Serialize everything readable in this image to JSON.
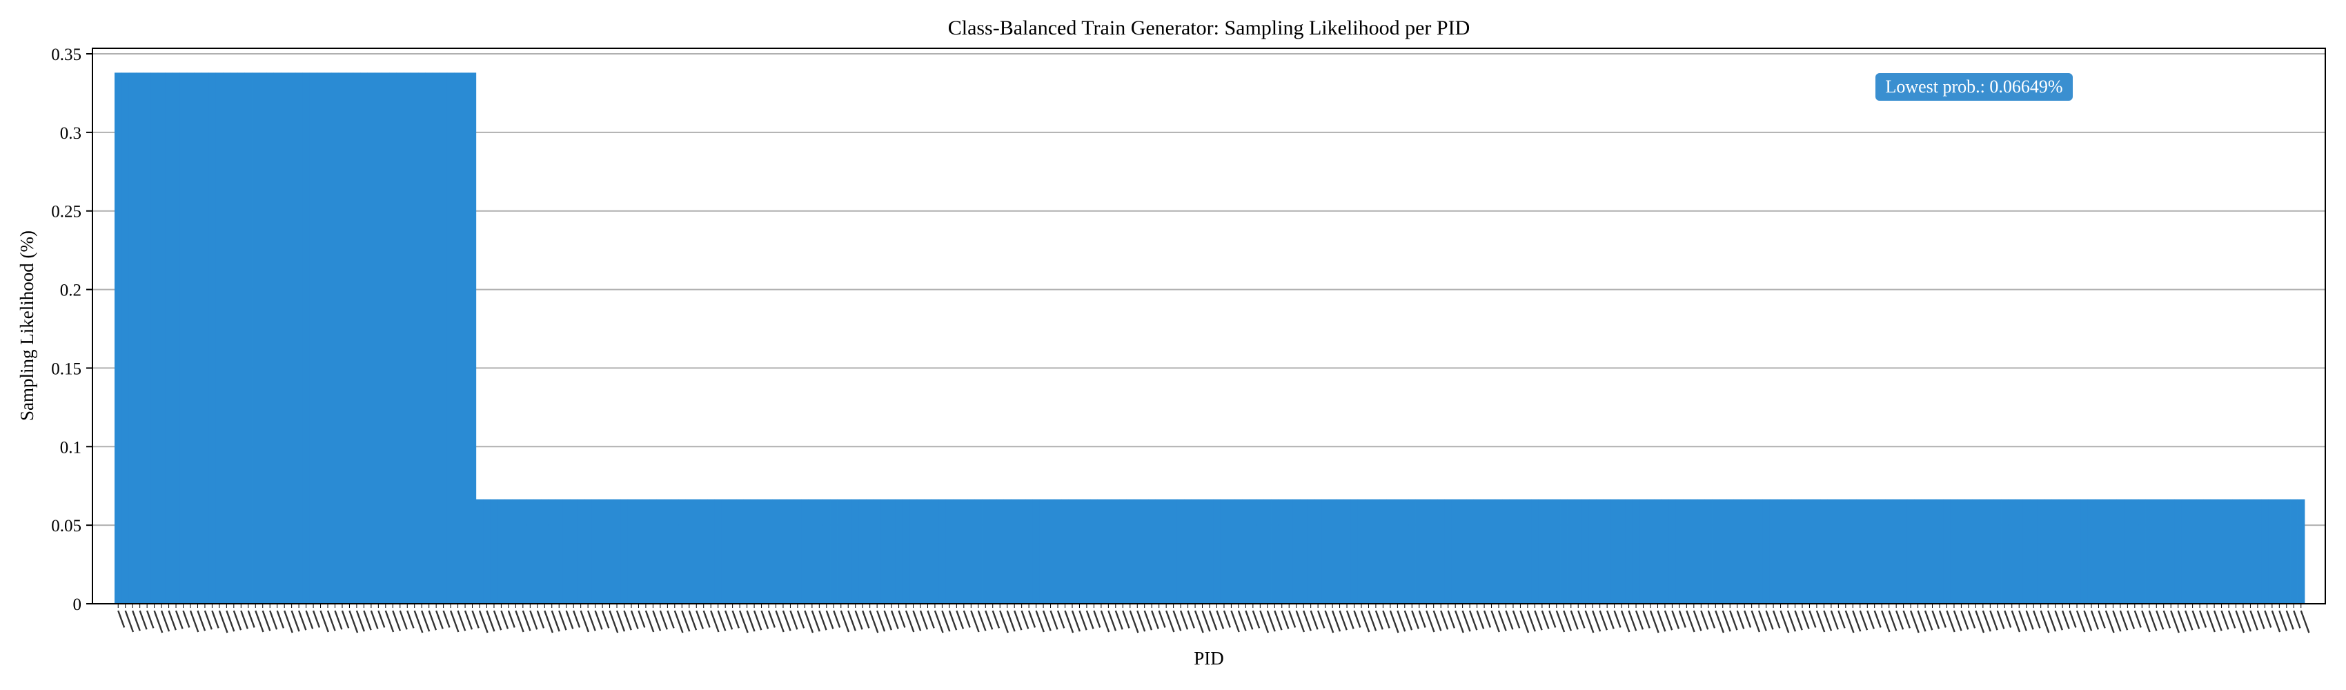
{
  "chart_data": {
    "type": "bar",
    "title": "Class-Balanced Train Generator: Sampling Likelihood per PID",
    "xlabel": "PID",
    "ylabel": "Sampling Likelihood (%)",
    "ylim": [
      0,
      0.35
    ],
    "yticks": [
      0,
      0.05,
      0.1,
      0.15,
      0.2,
      0.25,
      0.3,
      0.35
    ],
    "grid": "y",
    "bar_color": "#2a8bd4",
    "annotation": {
      "text": "Lowest prob.: 0.06649%",
      "background": "#3a8fd0",
      "placement": "top-right"
    },
    "series": [
      {
        "segments": [
          {
            "count": 50,
            "value": 0.338
          },
          {
            "count": 253,
            "value": 0.06649
          }
        ]
      }
    ]
  }
}
